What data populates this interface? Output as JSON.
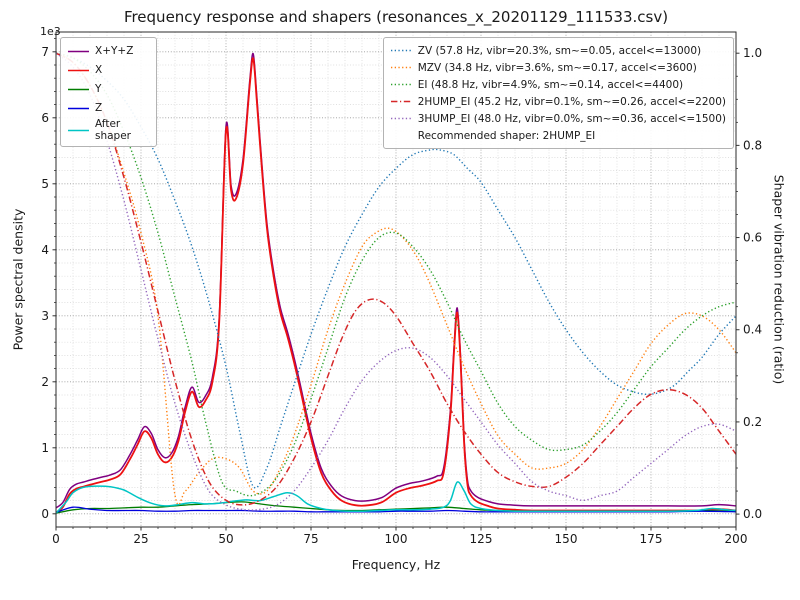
{
  "chart_data": {
    "type": "line",
    "title": "Frequency response and shapers (resonances_x_20201129_111533.csv)",
    "x_axis": {
      "label": "Frequency, Hz",
      "range": [
        0,
        200
      ],
      "ticks": [
        0,
        25,
        50,
        75,
        100,
        125,
        150,
        175,
        200
      ],
      "minor_step": 5
    },
    "y_left": {
      "label": "Power spectral density",
      "offset_label": "1e3",
      "range": [
        0,
        7
      ],
      "ticks": [
        0,
        1,
        2,
        3,
        4,
        5,
        6,
        7
      ],
      "minor_step": 0.2,
      "unit_scale": 1000
    },
    "y_right": {
      "label": "Shaper vibration reduction (ratio)",
      "range": [
        0,
        1
      ],
      "ticks": [
        0,
        0.2,
        0.4,
        0.6,
        0.8,
        1
      ],
      "minor_step": 0.05
    },
    "grid": true,
    "legend_positions": [
      "upper left",
      "upper right"
    ],
    "recommended_shaper": "2HUMP_EI",
    "series": [
      {
        "name": "X+Y+Z",
        "role": "psd",
        "axis": "left",
        "color": "#800080",
        "style": "solid",
        "width": 1.5,
        "x": [
          0,
          2,
          4,
          6,
          8,
          10,
          13,
          16,
          19,
          22,
          24,
          26,
          28,
          30,
          32,
          34,
          36,
          38,
          40,
          42,
          44,
          46,
          48,
          50,
          51.5,
          53,
          55,
          57,
          58,
          59,
          60,
          62,
          64,
          66,
          68,
          70,
          72,
          75,
          78,
          81,
          84,
          88,
          92,
          96,
          100,
          104,
          108,
          112,
          114,
          116,
          117,
          118,
          119,
          120,
          121,
          122,
          124,
          127,
          130,
          135,
          140,
          150,
          160,
          170,
          180,
          190,
          195,
          200
        ],
        "y": [
          0.09,
          0.17,
          0.37,
          0.45,
          0.48,
          0.51,
          0.55,
          0.59,
          0.67,
          0.92,
          1.12,
          1.32,
          1.22,
          0.97,
          0.85,
          0.92,
          1.17,
          1.62,
          1.92,
          1.69,
          1.79,
          2.07,
          2.97,
          5.87,
          4.97,
          4.85,
          5.37,
          6.57,
          6.97,
          6.37,
          5.67,
          4.42,
          3.67,
          3.12,
          2.77,
          2.37,
          1.92,
          1.22,
          0.69,
          0.42,
          0.27,
          0.2,
          0.2,
          0.25,
          0.39,
          0.46,
          0.5,
          0.57,
          0.69,
          1.57,
          2.47,
          3.12,
          2.37,
          1.17,
          0.52,
          0.35,
          0.25,
          0.19,
          0.15,
          0.13,
          0.12,
          0.12,
          0.12,
          0.12,
          0.12,
          0.12,
          0.14,
          0.12
        ]
      },
      {
        "name": "X",
        "role": "psd",
        "axis": "left",
        "color": "#ee1111",
        "style": "solid",
        "width": 1.8,
        "x": [
          0,
          2,
          4,
          6,
          8,
          10,
          13,
          16,
          19,
          22,
          24,
          26,
          28,
          30,
          32,
          34,
          36,
          38,
          40,
          42,
          44,
          46,
          48,
          50,
          51.5,
          53,
          55,
          57,
          58,
          59,
          60,
          62,
          64,
          66,
          68,
          70,
          72,
          75,
          78,
          81,
          84,
          88,
          92,
          96,
          100,
          104,
          108,
          112,
          114,
          116,
          117,
          118,
          119,
          120,
          121,
          122,
          124,
          127,
          130,
          135,
          140,
          150,
          160,
          170,
          180,
          190,
          195,
          200
        ],
        "y": [
          0.02,
          0.1,
          0.3,
          0.38,
          0.41,
          0.44,
          0.48,
          0.52,
          0.6,
          0.85,
          1.05,
          1.25,
          1.15,
          0.9,
          0.78,
          0.85,
          1.1,
          1.55,
          1.85,
          1.62,
          1.72,
          2.0,
          2.9,
          5.8,
          4.9,
          4.78,
          5.3,
          6.5,
          6.9,
          6.3,
          5.6,
          4.35,
          3.6,
          3.05,
          2.7,
          2.3,
          1.85,
          1.15,
          0.62,
          0.35,
          0.2,
          0.13,
          0.13,
          0.18,
          0.32,
          0.39,
          0.43,
          0.5,
          0.62,
          1.5,
          2.4,
          3.05,
          2.3,
          1.1,
          0.45,
          0.28,
          0.18,
          0.12,
          0.08,
          0.06,
          0.05,
          0.05,
          0.05,
          0.05,
          0.05,
          0.05,
          0.07,
          0.05
        ]
      },
      {
        "name": "Y",
        "role": "psd",
        "axis": "left",
        "color": "#007d00",
        "style": "solid",
        "width": 1.3,
        "x": [
          0,
          5,
          10,
          15,
          20,
          25,
          30,
          35,
          40,
          45,
          50,
          55,
          60,
          65,
          70,
          75,
          80,
          85,
          90,
          95,
          100,
          105,
          110,
          115,
          120,
          125,
          130,
          140,
          150,
          160,
          170,
          180,
          190,
          200
        ],
        "y": [
          0.01,
          0.06,
          0.08,
          0.08,
          0.09,
          0.1,
          0.1,
          0.12,
          0.14,
          0.15,
          0.17,
          0.18,
          0.15,
          0.12,
          0.1,
          0.08,
          0.06,
          0.05,
          0.05,
          0.06,
          0.07,
          0.08,
          0.09,
          0.1,
          0.08,
          0.06,
          0.05,
          0.04,
          0.04,
          0.04,
          0.04,
          0.04,
          0.05,
          0.04
        ]
      },
      {
        "name": "Z",
        "role": "psd",
        "axis": "left",
        "color": "#0000dd",
        "style": "solid",
        "width": 1.3,
        "x": [
          0,
          5,
          10,
          15,
          20,
          25,
          30,
          35,
          40,
          45,
          50,
          55,
          60,
          65,
          70,
          75,
          80,
          85,
          90,
          95,
          100,
          105,
          110,
          115,
          120,
          125,
          130,
          140,
          150,
          160,
          170,
          180,
          190,
          200
        ],
        "y": [
          0.02,
          0.1,
          0.07,
          0.05,
          0.05,
          0.05,
          0.04,
          0.04,
          0.05,
          0.05,
          0.05,
          0.05,
          0.04,
          0.04,
          0.04,
          0.03,
          0.03,
          0.03,
          0.03,
          0.03,
          0.04,
          0.04,
          0.04,
          0.05,
          0.04,
          0.03,
          0.03,
          0.03,
          0.03,
          0.03,
          0.03,
          0.03,
          0.04,
          0.03
        ]
      },
      {
        "name": "After shaper",
        "role": "psd",
        "axis": "left",
        "color": "#00c5c5",
        "style": "solid",
        "width": 1.5,
        "x": [
          0,
          3,
          5,
          8,
          12,
          16,
          20,
          24,
          28,
          32,
          36,
          40,
          44,
          48,
          52,
          56,
          60,
          64,
          68,
          71,
          74,
          78,
          82,
          86,
          90,
          95,
          100,
          105,
          110,
          114,
          116,
          118,
          120,
          122,
          125,
          130,
          135,
          140,
          150,
          160,
          170,
          180,
          188,
          193,
          197,
          200
        ],
        "y": [
          0.01,
          0.18,
          0.32,
          0.4,
          0.42,
          0.41,
          0.36,
          0.25,
          0.16,
          0.12,
          0.14,
          0.17,
          0.15,
          0.16,
          0.19,
          0.21,
          0.2,
          0.26,
          0.32,
          0.27,
          0.15,
          0.08,
          0.05,
          0.04,
          0.04,
          0.05,
          0.06,
          0.06,
          0.07,
          0.1,
          0.2,
          0.48,
          0.35,
          0.15,
          0.08,
          0.05,
          0.04,
          0.04,
          0.04,
          0.04,
          0.04,
          0.04,
          0.05,
          0.08,
          0.06,
          0.05
        ]
      },
      {
        "name": "ZV",
        "role": "shaper",
        "axis": "right",
        "color": "#1f77b4",
        "style": "dotted",
        "width": 1.4,
        "x": [
          0,
          5,
          10,
          15,
          20,
          25,
          30,
          35,
          40,
          45,
          50,
          54,
          58,
          62,
          66,
          70,
          75,
          80,
          85,
          90,
          95,
          100,
          105,
          110,
          113,
          117,
          121,
          125,
          130,
          135,
          140,
          145,
          150,
          155,
          160,
          165,
          170,
          174,
          178,
          182,
          186,
          190,
          195,
          200
        ],
        "y": [
          1.0,
          0.99,
          0.97,
          0.94,
          0.9,
          0.84,
          0.77,
          0.68,
          0.58,
          0.46,
          0.32,
          0.18,
          0.06,
          0.1,
          0.19,
          0.28,
          0.39,
          0.49,
          0.58,
          0.65,
          0.71,
          0.75,
          0.78,
          0.79,
          0.79,
          0.78,
          0.75,
          0.72,
          0.66,
          0.6,
          0.53,
          0.46,
          0.4,
          0.35,
          0.31,
          0.28,
          0.265,
          0.26,
          0.265,
          0.28,
          0.31,
          0.34,
          0.39,
          0.43
        ]
      },
      {
        "name": "MZV",
        "role": "shaper",
        "axis": "right",
        "color": "#ff7f0e",
        "style": "dotted",
        "width": 1.4,
        "x": [
          0,
          5,
          10,
          15,
          20,
          25,
          30,
          34.8,
          38,
          42,
          46,
          50,
          54,
          58,
          62,
          66,
          70,
          75,
          80,
          85,
          90,
          94,
          98,
          102,
          106,
          110,
          115,
          120,
          125,
          130,
          135,
          140,
          145,
          150,
          155,
          160,
          165,
          170,
          175,
          180,
          185,
          190,
          195,
          200
        ],
        "y": [
          1.0,
          0.98,
          0.93,
          0.85,
          0.74,
          0.61,
          0.43,
          0.05,
          0.05,
          0.09,
          0.12,
          0.12,
          0.1,
          0.05,
          0.05,
          0.1,
          0.17,
          0.28,
          0.4,
          0.5,
          0.58,
          0.61,
          0.62,
          0.6,
          0.56,
          0.5,
          0.41,
          0.32,
          0.24,
          0.17,
          0.13,
          0.1,
          0.1,
          0.11,
          0.14,
          0.19,
          0.25,
          0.31,
          0.37,
          0.41,
          0.435,
          0.43,
          0.4,
          0.35
        ]
      },
      {
        "name": "EI",
        "role": "shaper",
        "axis": "right",
        "color": "#2ca02c",
        "style": "dotted",
        "width": 1.4,
        "x": [
          0,
          5,
          10,
          15,
          20,
          25,
          30,
          35,
          40,
          44,
          48.8,
          53,
          57,
          61,
          65,
          70,
          75,
          80,
          85,
          90,
          95,
          100,
          105,
          110,
          115,
          120,
          125,
          130,
          135,
          140,
          145,
          150,
          155,
          160,
          165,
          170,
          175,
          180,
          185,
          190,
          195,
          200
        ],
        "y": [
          1.0,
          0.99,
          0.96,
          0.91,
          0.83,
          0.73,
          0.61,
          0.47,
          0.33,
          0.2,
          0.07,
          0.05,
          0.04,
          0.05,
          0.08,
          0.15,
          0.25,
          0.36,
          0.47,
          0.55,
          0.6,
          0.61,
          0.58,
          0.53,
          0.46,
          0.38,
          0.31,
          0.24,
          0.19,
          0.16,
          0.14,
          0.14,
          0.15,
          0.18,
          0.22,
          0.27,
          0.32,
          0.36,
          0.4,
          0.43,
          0.45,
          0.46
        ]
      },
      {
        "name": "2HUMP_EI",
        "role": "shaper",
        "axis": "right",
        "color": "#d62728",
        "style": "dashdot",
        "width": 1.5,
        "x": [
          0,
          5,
          10,
          15,
          20,
          25,
          30,
          35,
          40,
          45,
          50,
          55,
          60,
          65,
          70,
          75,
          80,
          84,
          88,
          92,
          96,
          100,
          105,
          110,
          115,
          120,
          125,
          130,
          135,
          140,
          145,
          150,
          155,
          160,
          165,
          170,
          175,
          180,
          185,
          190,
          195,
          200
        ],
        "y": [
          1.0,
          0.98,
          0.93,
          0.85,
          0.73,
          0.59,
          0.44,
          0.29,
          0.16,
          0.07,
          0.03,
          0.02,
          0.03,
          0.06,
          0.12,
          0.2,
          0.3,
          0.38,
          0.44,
          0.465,
          0.46,
          0.43,
          0.37,
          0.31,
          0.24,
          0.18,
          0.13,
          0.09,
          0.07,
          0.06,
          0.06,
          0.08,
          0.11,
          0.15,
          0.19,
          0.23,
          0.26,
          0.27,
          0.26,
          0.23,
          0.18,
          0.13
        ]
      },
      {
        "name": "3HUMP_EI",
        "role": "shaper",
        "axis": "right",
        "color": "#9467bd",
        "style": "dotted",
        "width": 1.4,
        "x": [
          0,
          5,
          10,
          15,
          20,
          25,
          30,
          35,
          40,
          45,
          50,
          55,
          60,
          65,
          70,
          75,
          80,
          85,
          90,
          95,
          100,
          105,
          110,
          115,
          120,
          125,
          130,
          135,
          140,
          145,
          150,
          155,
          160,
          165,
          170,
          175,
          180,
          185,
          190,
          195,
          200
        ],
        "y": [
          1.0,
          0.97,
          0.91,
          0.81,
          0.68,
          0.53,
          0.38,
          0.24,
          0.13,
          0.05,
          0.02,
          0.01,
          0.01,
          0.02,
          0.05,
          0.1,
          0.16,
          0.23,
          0.29,
          0.33,
          0.355,
          0.36,
          0.34,
          0.3,
          0.25,
          0.2,
          0.15,
          0.11,
          0.07,
          0.05,
          0.04,
          0.03,
          0.04,
          0.05,
          0.08,
          0.11,
          0.14,
          0.17,
          0.19,
          0.195,
          0.18
        ]
      }
    ]
  },
  "legend_psd": {
    "position": "upper left",
    "items": [
      {
        "series": "X+Y+Z",
        "label": "X+Y+Z"
      },
      {
        "series": "X",
        "label": "X"
      },
      {
        "series": "Y",
        "label": "Y"
      },
      {
        "series": "Z",
        "label": "Z"
      },
      {
        "series": "After shaper",
        "label": "After shaper"
      }
    ]
  },
  "legend_shapers": {
    "position": "upper right",
    "items": [
      {
        "series": "ZV",
        "label": "ZV (57.8 Hz, vibr=20.3%, sm~=0.05, accel<=13000)"
      },
      {
        "series": "MZV",
        "label": "MZV (34.8 Hz, vibr=3.6%, sm~=0.17, accel<=3600)"
      },
      {
        "series": "EI",
        "label": "EI (48.8 Hz, vibr=4.9%, sm~=0.14, accel<=4400)"
      },
      {
        "series": "2HUMP_EI",
        "label": "2HUMP_EI (45.2 Hz, vibr=0.1%, sm~=0.26, accel<=2200)"
      },
      {
        "series": "3HUMP_EI",
        "label": "3HUMP_EI (48.0 Hz, vibr=0.0%, sm~=0.36, accel<=1500)"
      }
    ],
    "footer": "Recommended shaper: 2HUMP_EI"
  },
  "style": {
    "grid_major": "#9b9b9b",
    "grid_minor": "#d6d6d6",
    "spine": "#2b2b2b",
    "text": "#1a1a1a",
    "background": "#ffffff"
  }
}
